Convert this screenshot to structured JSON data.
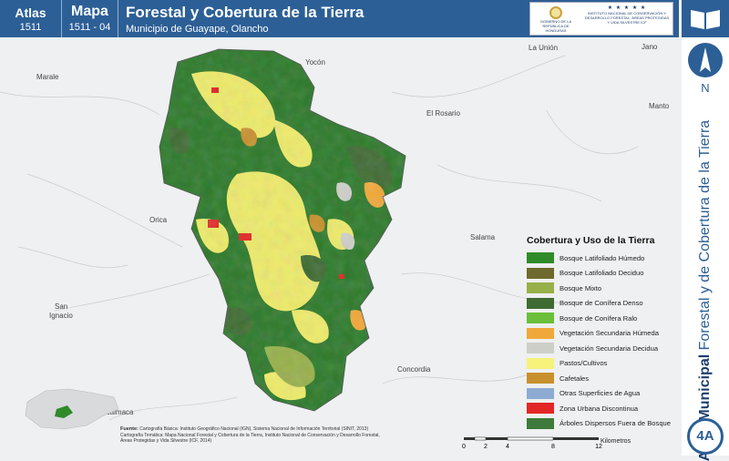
{
  "header": {
    "atlas_label": "Atlas",
    "atlas_number": "1511",
    "map_label": "Mapa",
    "map_number": "1511 - 04",
    "title": "Forestal y Cobertura de la Tierra",
    "subtitle": "Municipio de Guayape, Olancho"
  },
  "logos": {
    "gov_text": "GOBIERNO DE LA REPÚBLICA DE HONDURAS",
    "icf_stars": "★ ★ ★ ★ ★",
    "icf_text": "INSTITUTO NACIONAL DE CONSERVACIÓN Y DESARROLLO FORESTAL, ÁREAS PROTEGIDAS Y VIDA SILVESTRE ICF"
  },
  "side": {
    "north_letter": "N",
    "vertical_bold": "Atlas Municipal",
    "vertical_text": "Forestal y de Cobertura de la Tierra",
    "badge": "4A"
  },
  "towns": [
    "Yocón",
    "La Unión",
    "Jano",
    "Marale",
    "El Rosario",
    "Manto",
    "Orica",
    "Salama",
    "San",
    "Ignacio",
    "Concordia",
    "Guaimaca"
  ],
  "legend": {
    "title": "Cobertura y Uso de la Tierra",
    "items": [
      {
        "label": "Bosque Latifoliado Húmedo",
        "color": "#2f8a2a"
      },
      {
        "label": "Bosque Latifoliado Deciduo",
        "color": "#6e6a2e"
      },
      {
        "label": "Bosque Mixto",
        "color": "#97b04a"
      },
      {
        "label": "Bosque de Conífera Denso",
        "color": "#3f6b33"
      },
      {
        "label": "Bosque de Conífera Ralo",
        "color": "#6bbf3a"
      },
      {
        "label": "Vegetación Secundaria Húmeda",
        "color": "#f1a83a"
      },
      {
        "label": "Vegetación Secundaria Decidua",
        "color": "#cfcfc9"
      },
      {
        "label": "Pastos/Cultivos",
        "color": "#f6f27a"
      },
      {
        "label": "Cafetales",
        "color": "#c8902c"
      },
      {
        "label": "Otras Superficies de Agua",
        "color": "#8eabd4"
      },
      {
        "label": "Zona Urbana Discontinua",
        "color": "#e32626"
      },
      {
        "label": "Árboles Dispersos Fuera de Bosque",
        "color": "#3e7a3b"
      }
    ]
  },
  "credits": {
    "label": "Fuente:",
    "line1": "Cartografía Básica: Instituto Geográfico Nacional (IGN), Sistema Nacional de Información Territorial (SINIT, 2013)",
    "line2": "Cartografía Temática: Mapa Nacional Forestal y Cobertura de la Tierra, Instituto Nacional de Conservación y Desarrollo Forestal,",
    "line3": "Áreas Protegidas y Vida Silvestre (ICF, 2014)"
  },
  "scale": {
    "ticks": [
      "0",
      "2",
      "4",
      "8",
      "12"
    ],
    "unit": "Kilometros"
  },
  "colors": {
    "header_blue": "#2c5f96",
    "forest_dark": "#2d7a2b",
    "pasture": "#eeeb6a"
  }
}
